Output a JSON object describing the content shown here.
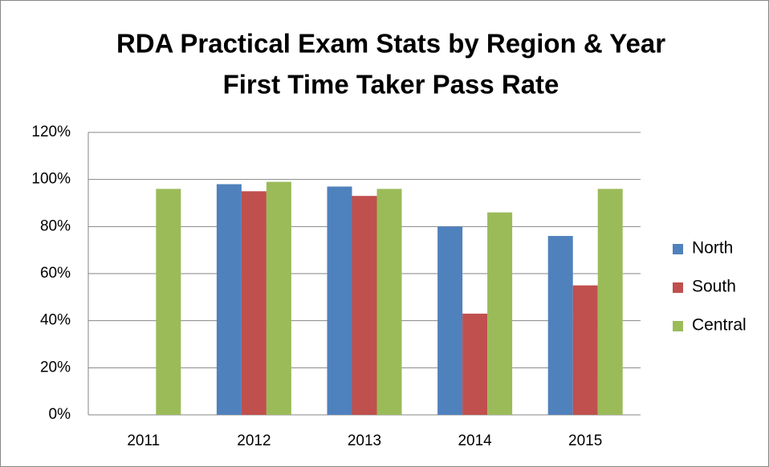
{
  "chart_data": {
    "type": "bar",
    "title": "RDA Practical Exam Stats by Region & Year",
    "subtitle": "First Time Taker Pass Rate",
    "categories": [
      "2011",
      "2012",
      "2013",
      "2014",
      "2015"
    ],
    "series": [
      {
        "name": "North",
        "color": "#4f81bd",
        "values": [
          null,
          98,
          97,
          80,
          76
        ]
      },
      {
        "name": "South",
        "color": "#c0504d",
        "values": [
          null,
          95,
          93,
          43,
          55
        ]
      },
      {
        "name": "Central",
        "color": "#9bbb59",
        "values": [
          96,
          99,
          96,
          86,
          96
        ]
      }
    ],
    "ylim": [
      0,
      120
    ],
    "yticks": [
      {
        "value": 0,
        "label": "0%"
      },
      {
        "value": 20,
        "label": "20%"
      },
      {
        "value": 40,
        "label": "40%"
      },
      {
        "value": 60,
        "label": "60%"
      },
      {
        "value": 80,
        "label": "80%"
      },
      {
        "value": 100,
        "label": "100%"
      },
      {
        "value": 120,
        "label": "120%"
      }
    ],
    "grid": true,
    "legend": "right"
  }
}
